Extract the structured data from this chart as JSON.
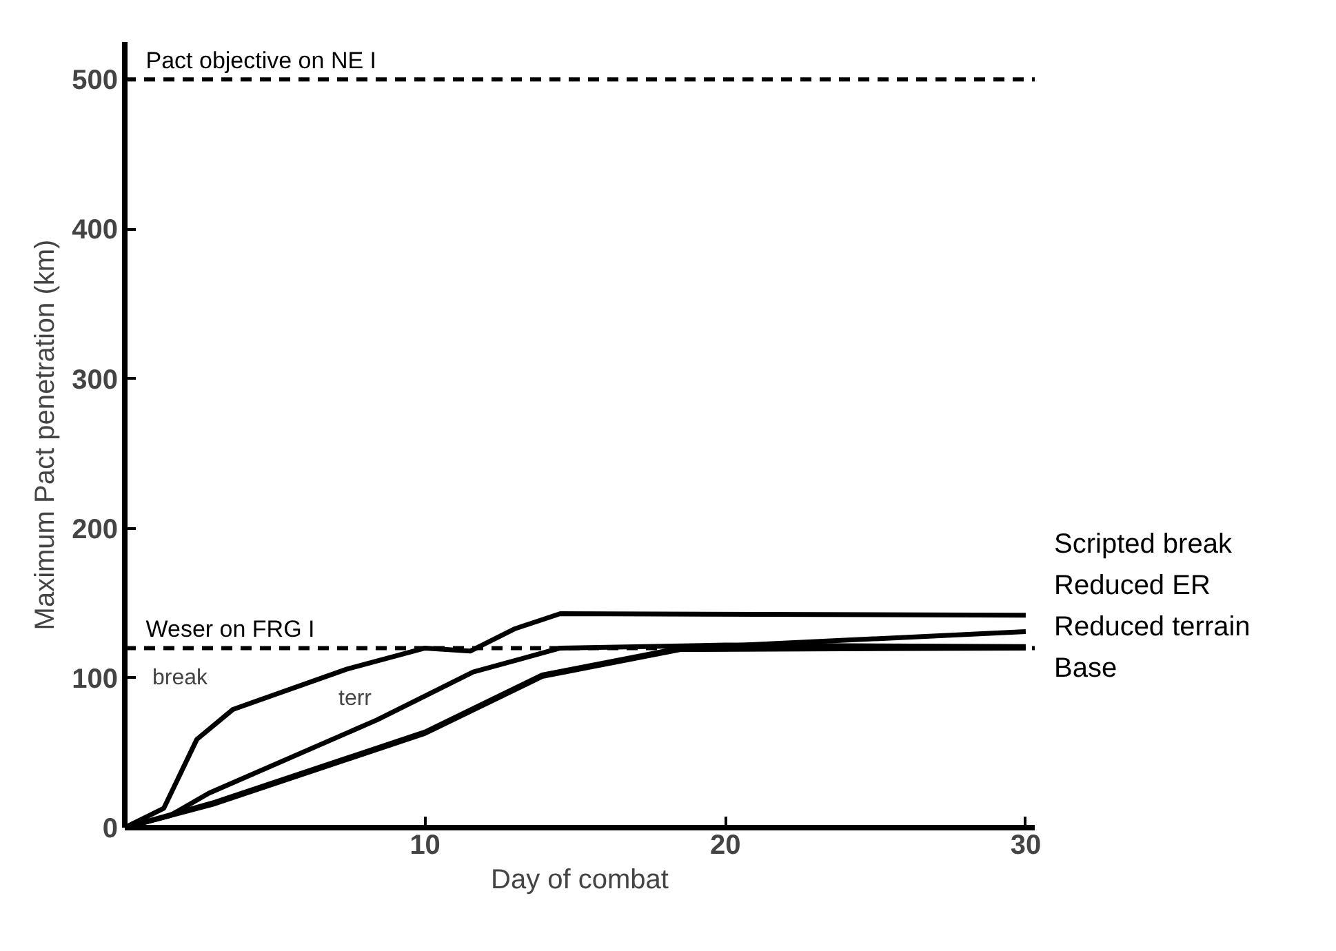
{
  "chart_data": {
    "type": "line",
    "xlabel": "Day of combat",
    "ylabel": "Maximum Pact penetration (km)",
    "xlim": [
      0,
      30.3
    ],
    "ylim": [
      0,
      525
    ],
    "xticks": [
      10,
      20,
      30
    ],
    "yticks": [
      0,
      100,
      200,
      300,
      400,
      500
    ],
    "grid": false,
    "marker": "none",
    "line_style": "solid",
    "series": [
      {
        "name": "Scripted break",
        "color": "#000000",
        "x": [
          0,
          1.3,
          2.4,
          3.6,
          7.4,
          10,
          11.5,
          13,
          14.5,
          30
        ],
        "values": [
          0,
          13,
          59,
          79,
          106,
          120,
          118,
          133,
          143,
          142
        ]
      },
      {
        "name": "Reduced ER",
        "color": "#000000",
        "x": [
          0,
          3,
          10,
          13.9,
          18.5,
          30
        ],
        "values": [
          0,
          17,
          64,
          102,
          120,
          131
        ]
      },
      {
        "name": "Reduced terrain",
        "color": "#000000",
        "x": [
          0,
          1.5,
          2.8,
          8.4,
          11.6,
          14.5,
          20,
          30
        ],
        "values": [
          0,
          8,
          23,
          72,
          104,
          120,
          122,
          121
        ]
      },
      {
        "name": "Base",
        "color": "#000000",
        "x": [
          0,
          3,
          10,
          13.9,
          18.5,
          30
        ],
        "values": [
          0,
          16,
          63,
          101,
          119,
          120
        ]
      }
    ],
    "ref_lines": [
      {
        "axis": "y",
        "value": 500,
        "label": "Pact objective on NE I",
        "line_style": "dashed",
        "color": "#000000"
      },
      {
        "axis": "y",
        "value": 120,
        "label": "Weser on FRG I",
        "line_style": "dashed",
        "color": "#000000"
      }
    ],
    "annotations": [
      "break",
      "terr"
    ]
  }
}
